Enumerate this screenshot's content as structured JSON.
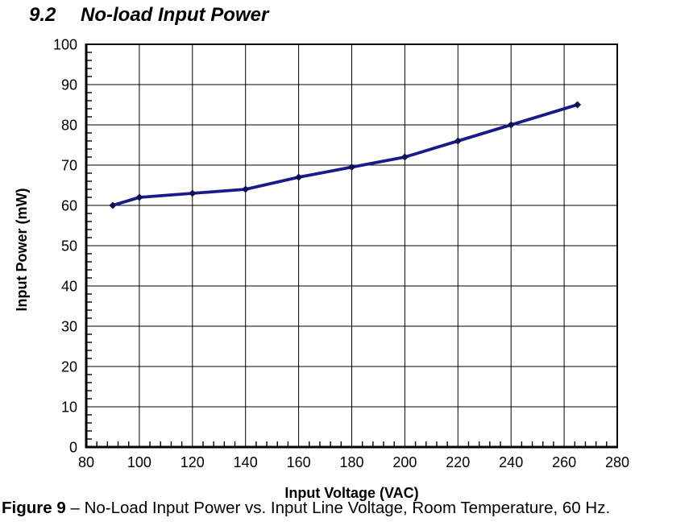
{
  "heading": {
    "number": "9.2",
    "title": "No-load Input Power"
  },
  "caption": {
    "label": "Figure 9",
    "text": "– No-Load Input Power vs. Input Line Voltage, Room Temperature, 60 Hz."
  },
  "chart_data": {
    "type": "line",
    "title": "No-load Input Power",
    "xlabel": "Input Voltage (VAC)",
    "ylabel": "Input Power (mW)",
    "xlim": [
      80,
      280
    ],
    "ylim": [
      0,
      100
    ],
    "x_ticks": [
      80,
      100,
      120,
      140,
      160,
      180,
      200,
      220,
      240,
      260,
      280
    ],
    "y_ticks": [
      0,
      10,
      20,
      30,
      40,
      50,
      60,
      70,
      80,
      90,
      100
    ],
    "x_minor_step": 4,
    "y_minor_step": 2,
    "grid": true,
    "legend": "none",
    "colors": {
      "line": "#1a1a8c",
      "marker": "#10104d",
      "grid": "#000000",
      "text": "#000000",
      "background": "#ffffff"
    },
    "series": [
      {
        "name": "No-load input power",
        "marker": "diamond",
        "x": [
          90,
          100,
          120,
          140,
          160,
          180,
          200,
          220,
          240,
          265
        ],
        "y": [
          60,
          62,
          63,
          64,
          67,
          69.5,
          72,
          76,
          80,
          85
        ]
      }
    ]
  }
}
